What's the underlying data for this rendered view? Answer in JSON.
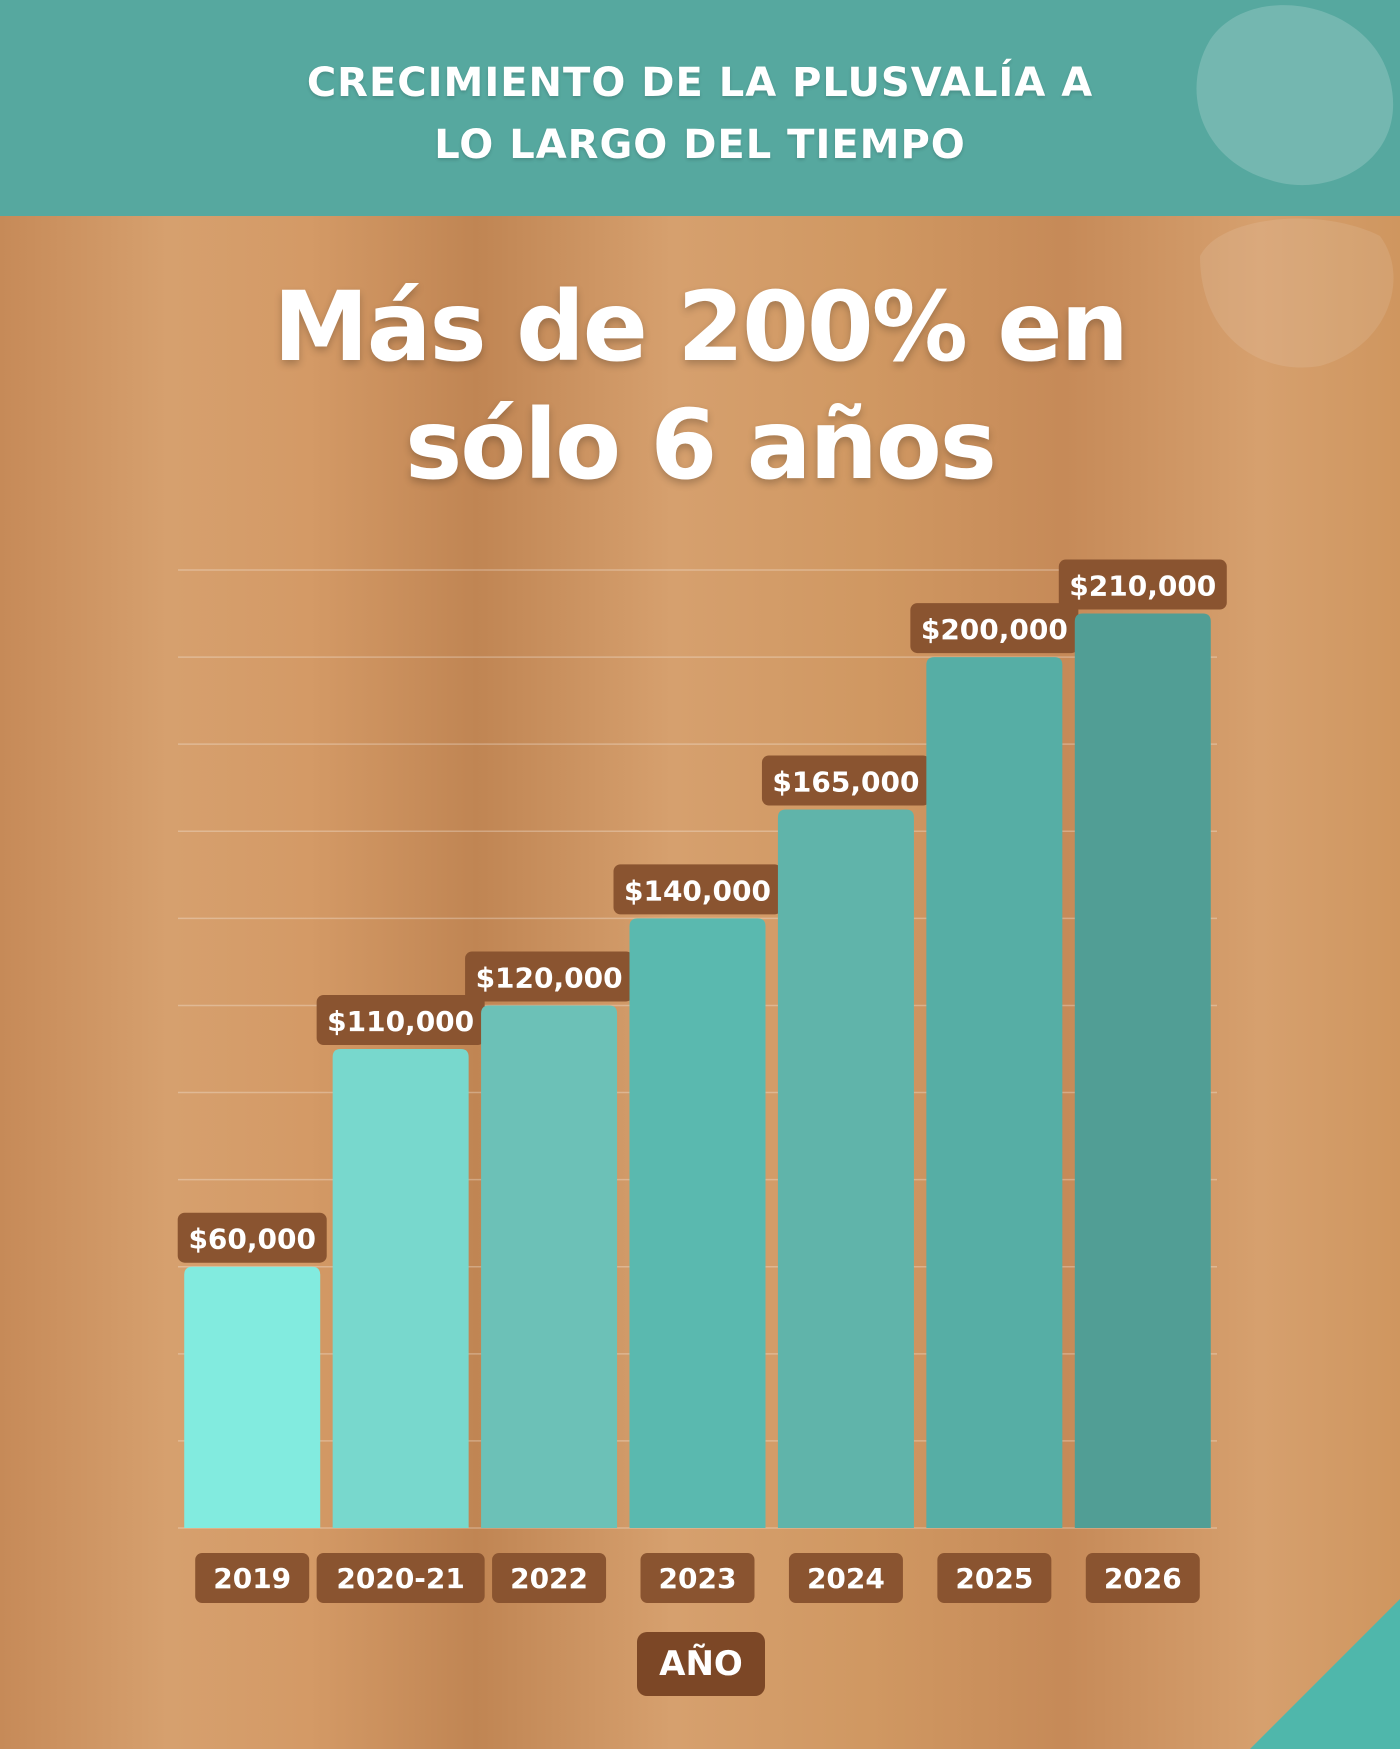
{
  "header": {
    "title_line1": "CRECIMIENTO DE LA PLUSVALÍA A",
    "title_line2": "LO LARGO DEL TIEMPO"
  },
  "headline": {
    "line1": "Más de 200% en",
    "line2": "sólo 6 años"
  },
  "colors": {
    "header_band": "#56a89f",
    "label_box": "#8a5430",
    "axis_badge": "#7c4726",
    "bars": [
      "#82ebdf",
      "#78d8cd",
      "#6cc1b7",
      "#5ab9af",
      "#60b4aa",
      "#56aea5",
      "#519e95"
    ]
  },
  "chart_data": {
    "type": "bar",
    "title": "",
    "xlabel": "AÑO",
    "ylabel": "",
    "ylim": [
      0,
      220000
    ],
    "grid": true,
    "categories": [
      "2019",
      "2020-21",
      "2022",
      "2023",
      "2024",
      "2025",
      "2026"
    ],
    "values": [
      60000,
      110000,
      120000,
      140000,
      165000,
      200000,
      210000
    ],
    "value_labels": [
      "$60,000",
      "$110,000",
      "$120,000",
      "$140,000",
      "$165,000",
      "$200,000",
      "$210,000"
    ]
  }
}
